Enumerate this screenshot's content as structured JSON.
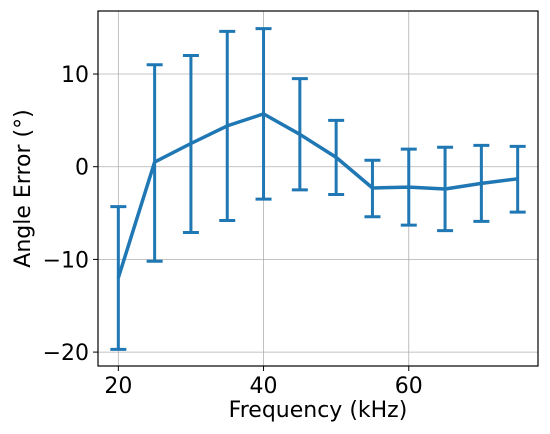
{
  "chart_data": {
    "type": "line",
    "title": "",
    "xlabel": "Frequency (kHz)",
    "ylabel": "Angle Error (°)",
    "xlim": [
      17.2,
      77.8
    ],
    "ylim": [
      -21.5,
      16.8
    ],
    "xticks": [
      20,
      40,
      60
    ],
    "yticks": [
      -20,
      -10,
      0,
      10
    ],
    "x_tick_labels": [
      "20",
      "40",
      "60"
    ],
    "y_tick_labels": [
      "−20",
      "−10",
      "0",
      "10"
    ],
    "grid": true,
    "legend": "none",
    "series": [
      {
        "color": "#1f77b4",
        "x": [
          20,
          25,
          30,
          35,
          40,
          45,
          50,
          55,
          60,
          65,
          70,
          75
        ],
        "y": [
          -12.0,
          0.5,
          2.5,
          4.4,
          5.7,
          3.5,
          1.0,
          -2.3,
          -2.2,
          -2.4,
          -1.8,
          -1.3
        ],
        "err_low": [
          -19.7,
          -10.2,
          -7.1,
          -5.8,
          -3.5,
          -2.5,
          -3.0,
          -5.4,
          -6.3,
          -6.9,
          -5.9,
          -4.9
        ],
        "err_high": [
          -4.3,
          11.0,
          12.0,
          14.6,
          14.9,
          9.5,
          5.0,
          0.7,
          1.9,
          2.1,
          2.3,
          2.2
        ]
      }
    ]
  }
}
